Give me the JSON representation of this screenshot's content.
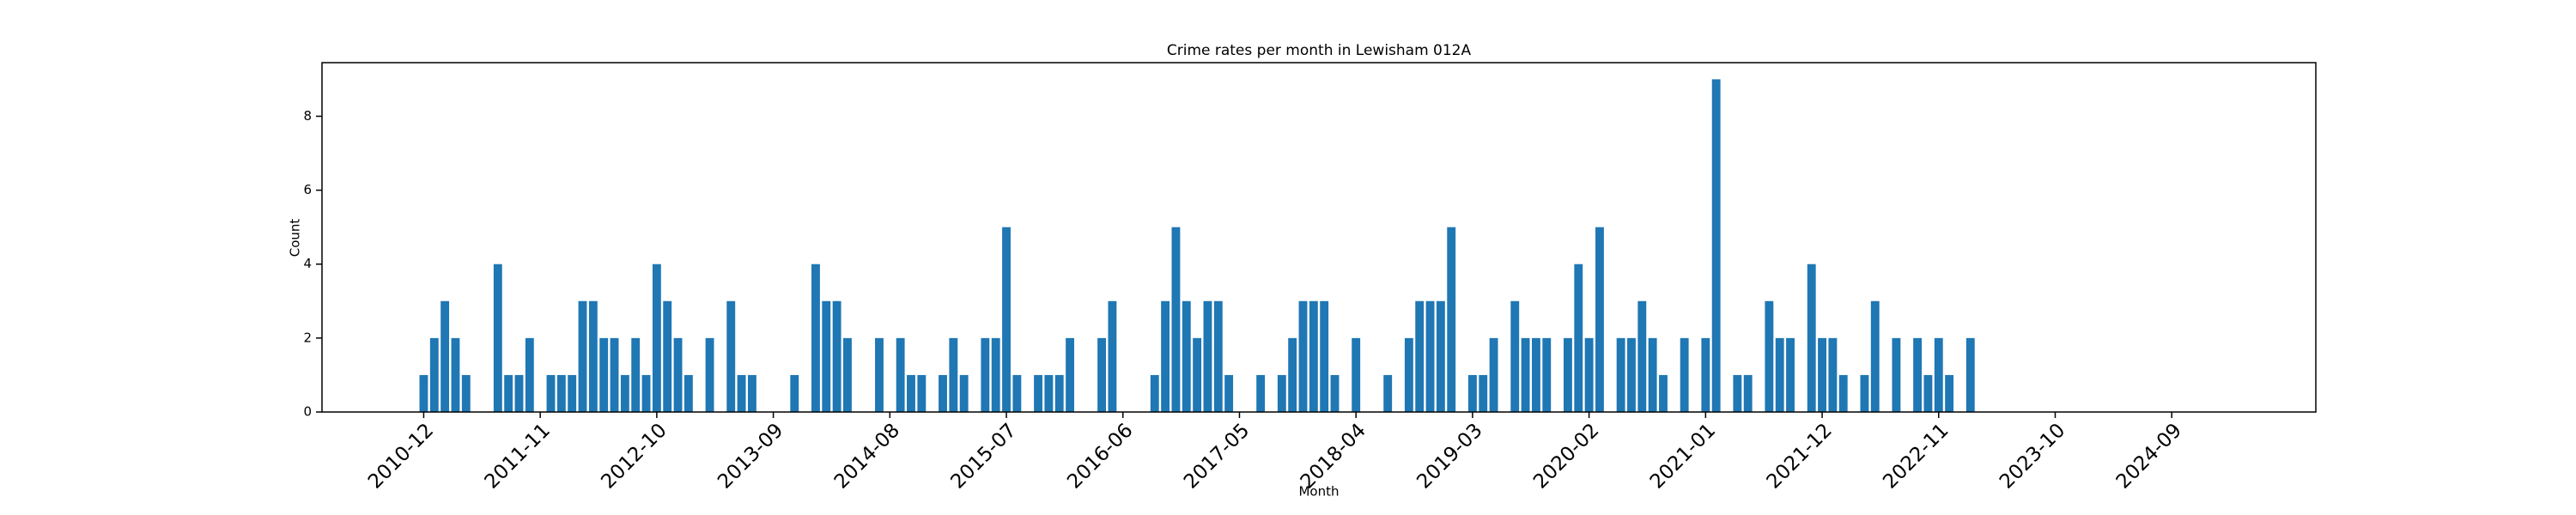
{
  "chart_data": {
    "type": "bar",
    "title": "Crime rates per month in Lewisham 012A",
    "x_label": "Month",
    "y_label": "Count",
    "color": "#1f77b4",
    "categories": [
      "2010-12",
      null,
      null,
      null,
      null,
      null,
      null,
      null,
      null,
      null,
      null,
      "2011-11",
      null,
      null,
      null,
      null,
      null,
      null,
      null,
      null,
      null,
      null,
      "2012-10",
      null,
      null,
      null,
      null,
      null,
      null,
      null,
      null,
      null,
      null,
      "2013-09",
      null,
      null,
      null,
      null,
      null,
      null,
      null,
      null,
      null,
      null,
      "2014-08",
      null,
      null,
      null,
      null,
      null,
      null,
      null,
      null,
      null,
      null,
      "2015-07",
      null,
      null,
      null,
      null,
      null,
      null,
      null,
      null,
      null,
      null,
      "2016-06",
      null,
      null,
      null,
      null,
      null,
      null,
      null,
      null,
      null,
      null,
      "2017-05",
      null,
      null,
      null,
      null,
      null,
      null,
      null,
      null,
      null,
      null,
      "2018-04",
      null,
      null,
      null,
      null,
      null,
      null,
      null,
      null,
      null,
      null,
      "2019-03",
      null,
      null,
      null,
      null,
      null,
      null,
      null,
      null,
      null,
      null,
      "2020-02",
      null,
      null,
      null,
      null,
      null,
      null,
      null,
      null,
      null,
      null,
      "2021-01",
      null,
      null,
      null,
      null,
      null,
      null,
      null,
      null,
      null,
      null,
      "2021-12",
      null,
      null,
      null,
      null,
      null,
      null,
      null,
      null,
      null,
      null,
      "2022-11",
      null,
      null,
      null,
      null,
      null,
      null,
      null,
      null,
      null,
      null,
      "2023-10",
      null,
      null,
      null,
      null,
      null,
      null,
      null,
      null,
      null,
      null,
      "2024-09"
    ],
    "values": [
      1,
      2,
      3,
      2,
      1,
      0,
      0,
      4,
      1,
      1,
      2,
      0,
      1,
      1,
      1,
      3,
      3,
      2,
      2,
      1,
      2,
      1,
      4,
      3,
      2,
      1,
      0,
      2,
      0,
      3,
      1,
      1,
      0,
      0,
      0,
      1,
      0,
      4,
      3,
      3,
      2,
      0,
      0,
      2,
      0,
      2,
      1,
      1,
      0,
      1,
      2,
      1,
      0,
      2,
      2,
      5,
      1,
      0,
      1,
      1,
      1,
      2,
      0,
      0,
      2,
      3,
      0,
      0,
      0,
      1,
      3,
      5,
      3,
      2,
      3,
      3,
      1,
      0,
      0,
      1,
      0,
      1,
      2,
      3,
      3,
      3,
      1,
      0,
      2,
      0,
      0,
      1,
      0,
      2,
      3,
      3,
      3,
      5,
      0,
      1,
      1,
      2,
      0,
      3,
      2,
      2,
      2,
      0,
      2,
      4,
      2,
      5,
      0,
      2,
      2,
      3,
      2,
      1,
      0,
      2,
      0,
      2,
      9,
      0,
      1,
      1,
      0,
      3,
      2,
      2,
      0,
      4,
      2,
      2,
      1,
      0,
      1,
      3,
      0,
      2,
      0,
      2,
      1,
      2,
      1,
      0,
      2,
      null,
      null,
      null,
      null,
      null,
      null,
      null,
      null,
      null,
      null,
      null,
      null,
      null,
      null,
      null,
      null,
      null,
      null,
      null
    ],
    "xlim": [
      -9.6,
      178.6
    ],
    "ylim": [
      0,
      9.45
    ],
    "yticks": [
      0,
      2,
      4,
      6,
      8
    ]
  }
}
